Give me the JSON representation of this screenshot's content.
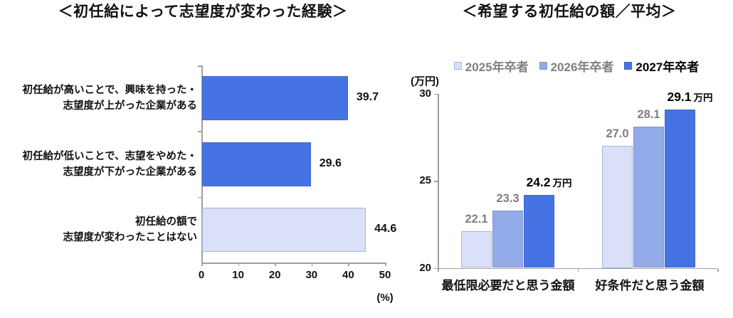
{
  "palette": {
    "dark_blue": "#4673E3",
    "medium_blue": "#93AAE8",
    "light_blue": "#D9E0F7",
    "dark_border": "#3E66CC",
    "medium_border": "#8096D2",
    "light_border": "#A9B5DC",
    "axis_gray": "#A0A0A0",
    "gray_text": "#7F7F7F"
  },
  "chart_data": [
    {
      "type": "bar",
      "orientation": "horizontal",
      "title": "＜初任給によって志望度が変わった経験＞",
      "categories": [
        "初任給が高いことで、興味を持った・志望度が上がった企業がある",
        "初任給が低いことで、志望をやめた・志望度が下がった企業がある",
        "初任給の額で志望度が変わったことはない"
      ],
      "category_lines": [
        [
          "初任給が高いことで、興味を持った・",
          "志望度が上がった企業がある"
        ],
        [
          "初任給が低いことで、志望をやめた・",
          "志望度が下がった企業がある"
        ],
        [
          "初任給の額で",
          "志望度が変わったことはない"
        ]
      ],
      "values": [
        39.7,
        29.6,
        44.6
      ],
      "bar_colors": [
        "#4673E3",
        "#4673E3",
        "#D9E0F7"
      ],
      "bar_borders": [
        "#3E66CC",
        "#3E66CC",
        "#A9B5DC"
      ],
      "xlabel": "(%)",
      "xlim": [
        0,
        50
      ],
      "xticks": [
        "0",
        "10",
        "20",
        "30",
        "40",
        "50"
      ],
      "grid": false,
      "legend": "none"
    },
    {
      "type": "bar",
      "orientation": "vertical",
      "title": "＜希望する初任給の額／平均＞",
      "unit_label": "(万円)",
      "categories": [
        "最低限必要だと思う金額",
        "好条件だと思う金額"
      ],
      "series": [
        {
          "name": "2025年卒者",
          "values": [
            22.1,
            27.0
          ],
          "color": "#D9E0F7",
          "border": "#A9B5DC",
          "label_color": "#7F7F7F",
          "label_style": "gray",
          "value_suffix": ""
        },
        {
          "name": "2026年卒者",
          "values": [
            23.3,
            28.1
          ],
          "color": "#93AAE8",
          "border": "#8096D2",
          "label_color": "#7F7F7F",
          "label_style": "gray",
          "value_suffix": ""
        },
        {
          "name": "2027年卒者",
          "values": [
            24.2,
            29.1
          ],
          "color": "#4673E3",
          "border": "#3E66CC",
          "label_color": "#000000",
          "label_style": "black",
          "value_suffix": "万円"
        }
      ],
      "ylim": [
        20,
        30
      ],
      "yticks": [
        "30",
        "25",
        "20"
      ],
      "ytick_values": [
        30,
        25,
        20
      ],
      "grid": false,
      "legend_position": "top",
      "legend_text_colors": [
        "#7F7F7F",
        "#7F7F7F",
        "#000000"
      ]
    }
  ]
}
